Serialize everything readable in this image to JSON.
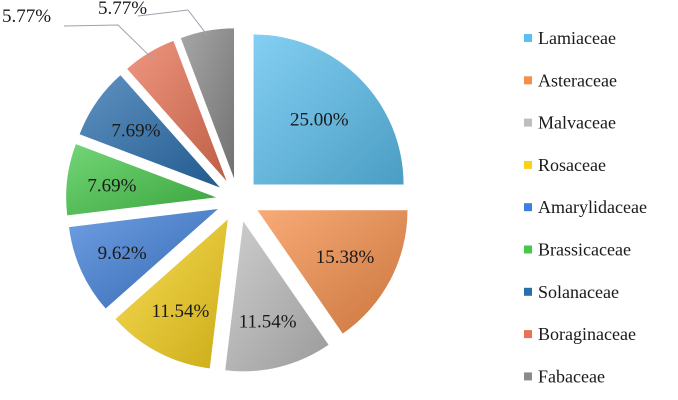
{
  "chart_data": {
    "type": "pie",
    "slices": [
      {
        "label": "Lamiaceae",
        "value": 25.0,
        "display": "25.00%",
        "color": "#5bbfef"
      },
      {
        "label": "Asteraceae",
        "value": 15.38,
        "display": "15.38%",
        "color": "#f68f4a"
      },
      {
        "label": "Malvaceae",
        "value": 11.54,
        "display": "11.54%",
        "color": "#bdbdbd"
      },
      {
        "label": "Rosaceae",
        "value": 11.54,
        "display": "11.54%",
        "color": "#f7d21d"
      },
      {
        "label": "Amarylidaceae",
        "value": 9.62,
        "display": "9.62%",
        "color": "#3f7fd9"
      },
      {
        "label": "Brassicaceae",
        "value": 7.69,
        "display": "7.69%",
        "color": "#45c84a"
      },
      {
        "label": "Solanaceae",
        "value": 7.69,
        "display": "7.69%",
        "color": "#2a6ead"
      },
      {
        "label": "Boraginaceae",
        "value": 5.77,
        "display": "5.77%",
        "color": "#e97355"
      },
      {
        "label": "Fabaceae",
        "value": 5.77,
        "display": "5.77%",
        "color": "#8a8a8a"
      }
    ],
    "legend_position": "right"
  }
}
